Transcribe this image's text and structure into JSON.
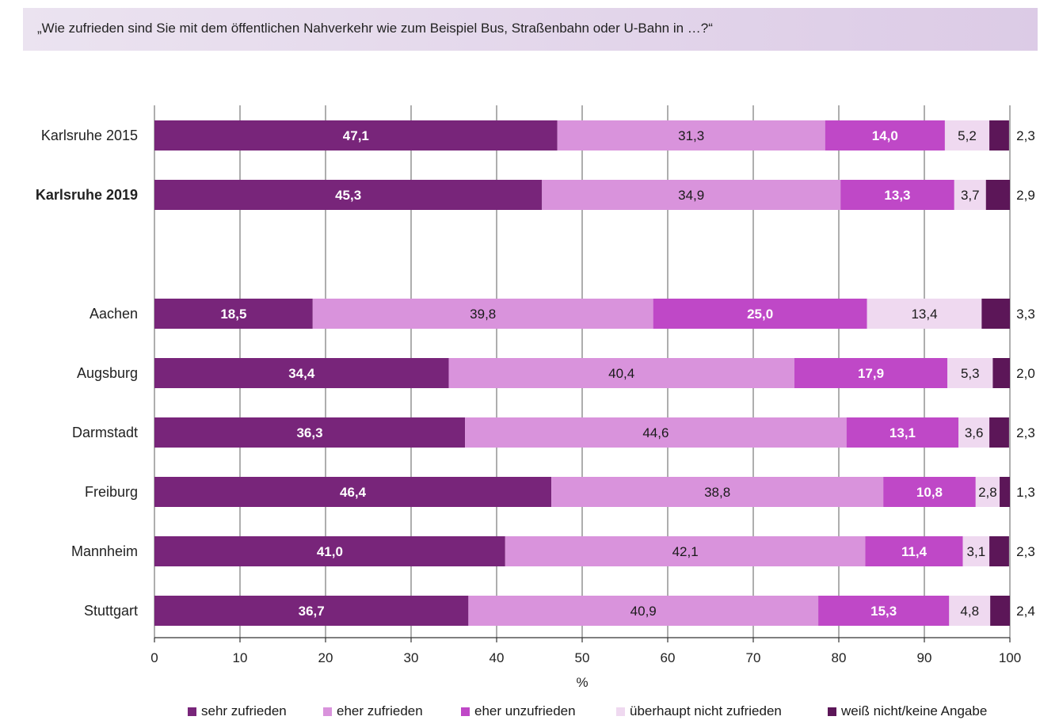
{
  "header": {
    "question": "„Wie zufrieden sind Sie mit dem öffentlichen Nahverkehr wie zum Beispiel Bus, Straßenbahn oder U-Bahn in …?“"
  },
  "colors": {
    "sehr_zufrieden": "#78257a",
    "eher_zufrieden": "#d993dc",
    "eher_unzufrieden": "#bf48c7",
    "ueberhaupt_nicht": "#efd9f0",
    "weiss_nicht": "#5c1658",
    "grid": "#8c8c8c",
    "header_band": "#e3d5ea"
  },
  "chart_data": {
    "type": "bar",
    "orientation": "horizontal",
    "stacked": true,
    "categories": [
      "Karlsruhe 2015",
      "Karlsruhe 2019",
      "Aachen",
      "Augsburg",
      "Darmstadt",
      "Freiburg",
      "Mannheim",
      "Stuttgart"
    ],
    "highlighted_category": "Karlsruhe 2019",
    "series": [
      {
        "name": "sehr zufrieden",
        "values": [
          47.1,
          45.3,
          18.5,
          34.4,
          36.3,
          46.4,
          41.0,
          36.7
        ],
        "labels": [
          "47,1",
          "45,3",
          "18,5",
          "34,4",
          "36,3",
          "46,4",
          "41,0",
          "36,7"
        ]
      },
      {
        "name": "eher zufrieden",
        "values": [
          31.3,
          34.9,
          39.8,
          40.4,
          44.6,
          38.8,
          42.1,
          40.9
        ],
        "labels": [
          "31,3",
          "34,9",
          "39,8",
          "40,4",
          "44,6",
          "38,8",
          "42,1",
          "40,9"
        ]
      },
      {
        "name": "eher unzufrieden",
        "values": [
          14.0,
          13.3,
          25.0,
          17.9,
          13.1,
          10.8,
          11.4,
          15.3
        ],
        "labels": [
          "14,0",
          "13,3",
          "25,0",
          "17,9",
          "13,1",
          "10,8",
          "11,4",
          "15,3"
        ]
      },
      {
        "name": "überhaupt nicht zufrieden",
        "values": [
          5.2,
          3.7,
          13.4,
          5.3,
          3.6,
          2.8,
          3.1,
          4.8
        ],
        "labels": [
          "5,2",
          "3,7",
          "13,4",
          "5,3",
          "3,6",
          "2,8",
          "3,1",
          "4,8"
        ]
      },
      {
        "name": "weiß nicht/keine Angabe",
        "values": [
          2.3,
          2.9,
          3.3,
          2.0,
          2.3,
          1.3,
          2.3,
          2.4
        ],
        "labels": [
          "2,3",
          "2,9",
          "3,3",
          "2,0",
          "2,3",
          "1,3",
          "2,3",
          "2,4"
        ]
      }
    ],
    "xlim": [
      0,
      100
    ],
    "xticks": [
      0,
      10,
      20,
      30,
      40,
      50,
      60,
      70,
      80,
      90,
      100
    ],
    "xlabel": "%",
    "grid": true,
    "legend_position": "bottom"
  }
}
